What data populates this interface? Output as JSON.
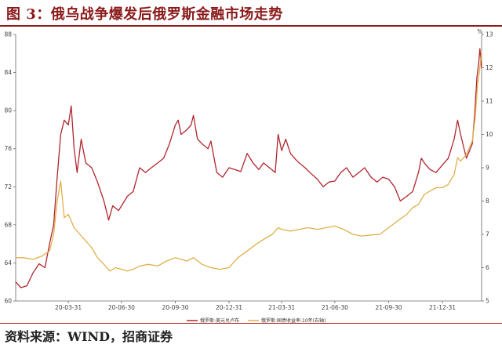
{
  "header": {
    "title": "图 3：俄乌战争爆发后俄罗斯金融市场走势"
  },
  "footer": {
    "source": "资料来源：WIND，招商证券"
  },
  "chart_data": {
    "type": "line",
    "title": "",
    "xlabel": "",
    "ylabel": "",
    "x_ticks": [
      "20-03-31",
      "20-06-30",
      "20-09-30",
      "20-12-31",
      "21-03-31",
      "21-06-30",
      "21-09-30",
      "21-12-31"
    ],
    "x_range": [
      "2020-01-01",
      "2022-03-08"
    ],
    "y_left": {
      "range": [
        60,
        88
      ],
      "ticks": [
        60,
        64,
        68,
        72,
        76,
        80,
        84,
        88
      ]
    },
    "y_right": {
      "range": [
        5,
        13
      ],
      "ticks": [
        5,
        6,
        7,
        8,
        9,
        10,
        11,
        12,
        13
      ],
      "unit_label": "%"
    },
    "legend_position": "bottom-center",
    "grid": false,
    "series": [
      {
        "name": "俄罗斯:美元兑卢布",
        "axis": "left",
        "color": "#b0262d",
        "points": [
          [
            "2020-01-01",
            62.0
          ],
          [
            "2020-01-10",
            61.4
          ],
          [
            "2020-01-20",
            61.6
          ],
          [
            "2020-01-31",
            63.0
          ],
          [
            "2020-02-10",
            63.9
          ],
          [
            "2020-02-20",
            63.5
          ],
          [
            "2020-02-28",
            66.0
          ],
          [
            "2020-03-06",
            68.0
          ],
          [
            "2020-03-12",
            73.0
          ],
          [
            "2020-03-18",
            77.5
          ],
          [
            "2020-03-24",
            79.0
          ],
          [
            "2020-03-31",
            78.5
          ],
          [
            "2020-04-05",
            80.5
          ],
          [
            "2020-04-10",
            76.0
          ],
          [
            "2020-04-15",
            73.5
          ],
          [
            "2020-04-22",
            77.0
          ],
          [
            "2020-04-30",
            74.5
          ],
          [
            "2020-05-10",
            74.0
          ],
          [
            "2020-05-20",
            72.5
          ],
          [
            "2020-05-31",
            70.5
          ],
          [
            "2020-06-08",
            68.5
          ],
          [
            "2020-06-15",
            70.0
          ],
          [
            "2020-06-25",
            69.5
          ],
          [
            "2020-06-30",
            70.0
          ],
          [
            "2020-07-10",
            71.0
          ],
          [
            "2020-07-20",
            71.5
          ],
          [
            "2020-07-31",
            74.0
          ],
          [
            "2020-08-10",
            73.5
          ],
          [
            "2020-08-20",
            74.0
          ],
          [
            "2020-08-31",
            74.5
          ],
          [
            "2020-09-10",
            75.0
          ],
          [
            "2020-09-20",
            76.5
          ],
          [
            "2020-09-30",
            78.5
          ],
          [
            "2020-10-05",
            79.0
          ],
          [
            "2020-10-10",
            77.5
          ],
          [
            "2020-10-20",
            78.0
          ],
          [
            "2020-10-27",
            78.5
          ],
          [
            "2020-10-31",
            79.5
          ],
          [
            "2020-11-07",
            77.0
          ],
          [
            "2020-11-15",
            76.5
          ],
          [
            "2020-11-25",
            76.0
          ],
          [
            "2020-11-30",
            76.8
          ],
          [
            "2020-12-10",
            73.5
          ],
          [
            "2020-12-20",
            73.0
          ],
          [
            "2020-12-31",
            74.0
          ],
          [
            "2021-01-10",
            73.8
          ],
          [
            "2021-01-20",
            73.6
          ],
          [
            "2021-01-31",
            75.5
          ],
          [
            "2021-02-10",
            74.5
          ],
          [
            "2021-02-20",
            73.8
          ],
          [
            "2021-02-28",
            74.5
          ],
          [
            "2021-03-10",
            74.0
          ],
          [
            "2021-03-20",
            73.5
          ],
          [
            "2021-03-25",
            77.5
          ],
          [
            "2021-03-31",
            75.8
          ],
          [
            "2021-04-07",
            77.0
          ],
          [
            "2021-04-15",
            75.5
          ],
          [
            "2021-04-25",
            74.8
          ],
          [
            "2021-04-30",
            74.5
          ],
          [
            "2021-05-10",
            74.0
          ],
          [
            "2021-05-20",
            73.4
          ],
          [
            "2021-05-31",
            72.8
          ],
          [
            "2021-06-10",
            72.0
          ],
          [
            "2021-06-20",
            72.5
          ],
          [
            "2021-06-30",
            72.6
          ],
          [
            "2021-07-10",
            73.5
          ],
          [
            "2021-07-20",
            74.0
          ],
          [
            "2021-07-31",
            73.0
          ],
          [
            "2021-08-10",
            73.5
          ],
          [
            "2021-08-20",
            74.0
          ],
          [
            "2021-08-31",
            73.0
          ],
          [
            "2021-09-10",
            72.5
          ],
          [
            "2021-09-20",
            73.0
          ],
          [
            "2021-09-30",
            72.8
          ],
          [
            "2021-10-10",
            72.0
          ],
          [
            "2021-10-20",
            70.5
          ],
          [
            "2021-10-31",
            71.0
          ],
          [
            "2021-11-10",
            71.5
          ],
          [
            "2021-11-20",
            73.5
          ],
          [
            "2021-11-25",
            75.0
          ],
          [
            "2021-11-30",
            74.5
          ],
          [
            "2021-12-10",
            73.8
          ],
          [
            "2021-12-20",
            73.5
          ],
          [
            "2021-12-31",
            74.3
          ],
          [
            "2022-01-10",
            75.0
          ],
          [
            "2022-01-20",
            77.0
          ],
          [
            "2022-01-26",
            79.0
          ],
          [
            "2022-01-31",
            77.5
          ],
          [
            "2022-02-10",
            75.0
          ],
          [
            "2022-02-20",
            76.5
          ],
          [
            "2022-02-24",
            79.5
          ],
          [
            "2022-02-28",
            83.5
          ],
          [
            "2022-03-03",
            85.0
          ],
          [
            "2022-03-05",
            86.5
          ],
          [
            "2022-03-08",
            84.5
          ]
        ]
      },
      {
        "name": "俄罗斯:国债收益率:10年(右轴)",
        "axis": "right",
        "color": "#e0b048",
        "points": [
          [
            "2020-01-01",
            6.3
          ],
          [
            "2020-01-15",
            6.3
          ],
          [
            "2020-01-31",
            6.25
          ],
          [
            "2020-02-15",
            6.35
          ],
          [
            "2020-02-28",
            6.5
          ],
          [
            "2020-03-06",
            7.0
          ],
          [
            "2020-03-12",
            8.0
          ],
          [
            "2020-03-18",
            8.6
          ],
          [
            "2020-03-24",
            7.5
          ],
          [
            "2020-03-31",
            7.6
          ],
          [
            "2020-04-10",
            7.2
          ],
          [
            "2020-04-20",
            7.0
          ],
          [
            "2020-04-30",
            6.8
          ],
          [
            "2020-05-10",
            6.6
          ],
          [
            "2020-05-20",
            6.3
          ],
          [
            "2020-05-31",
            6.1
          ],
          [
            "2020-06-10",
            5.9
          ],
          [
            "2020-06-20",
            6.0
          ],
          [
            "2020-06-30",
            5.95
          ],
          [
            "2020-07-10",
            5.9
          ],
          [
            "2020-07-20",
            5.95
          ],
          [
            "2020-07-31",
            6.05
          ],
          [
            "2020-08-15",
            6.1
          ],
          [
            "2020-08-31",
            6.05
          ],
          [
            "2020-09-15",
            6.2
          ],
          [
            "2020-09-30",
            6.3
          ],
          [
            "2020-10-10",
            6.25
          ],
          [
            "2020-10-20",
            6.2
          ],
          [
            "2020-10-31",
            6.3
          ],
          [
            "2020-11-15",
            6.1
          ],
          [
            "2020-11-30",
            6.0
          ],
          [
            "2020-12-15",
            5.95
          ],
          [
            "2020-12-31",
            6.0
          ],
          [
            "2021-01-15",
            6.3
          ],
          [
            "2021-01-31",
            6.5
          ],
          [
            "2021-02-15",
            6.7
          ],
          [
            "2021-02-28",
            6.85
          ],
          [
            "2021-03-15",
            7.0
          ],
          [
            "2021-03-25",
            7.2
          ],
          [
            "2021-03-31",
            7.15
          ],
          [
            "2021-04-15",
            7.1
          ],
          [
            "2021-04-30",
            7.15
          ],
          [
            "2021-05-15",
            7.2
          ],
          [
            "2021-05-31",
            7.15
          ],
          [
            "2021-06-15",
            7.2
          ],
          [
            "2021-06-30",
            7.25
          ],
          [
            "2021-07-15",
            7.15
          ],
          [
            "2021-07-31",
            7.0
          ],
          [
            "2021-08-15",
            6.95
          ],
          [
            "2021-08-31",
            6.98
          ],
          [
            "2021-09-15",
            7.0
          ],
          [
            "2021-09-30",
            7.2
          ],
          [
            "2021-10-15",
            7.4
          ],
          [
            "2021-10-31",
            7.6
          ],
          [
            "2021-11-10",
            7.8
          ],
          [
            "2021-11-20",
            7.9
          ],
          [
            "2021-11-30",
            8.2
          ],
          [
            "2021-12-10",
            8.3
          ],
          [
            "2021-12-20",
            8.4
          ],
          [
            "2021-12-31",
            8.4
          ],
          [
            "2022-01-10",
            8.5
          ],
          [
            "2022-01-20",
            8.8
          ],
          [
            "2022-01-26",
            9.3
          ],
          [
            "2022-01-31",
            9.2
          ],
          [
            "2022-02-10",
            9.4
          ],
          [
            "2022-02-20",
            9.8
          ],
          [
            "2022-02-25",
            10.5
          ],
          [
            "2022-03-01",
            11.5
          ],
          [
            "2022-03-05",
            12.0
          ],
          [
            "2022-03-08",
            12.5
          ]
        ]
      }
    ]
  }
}
